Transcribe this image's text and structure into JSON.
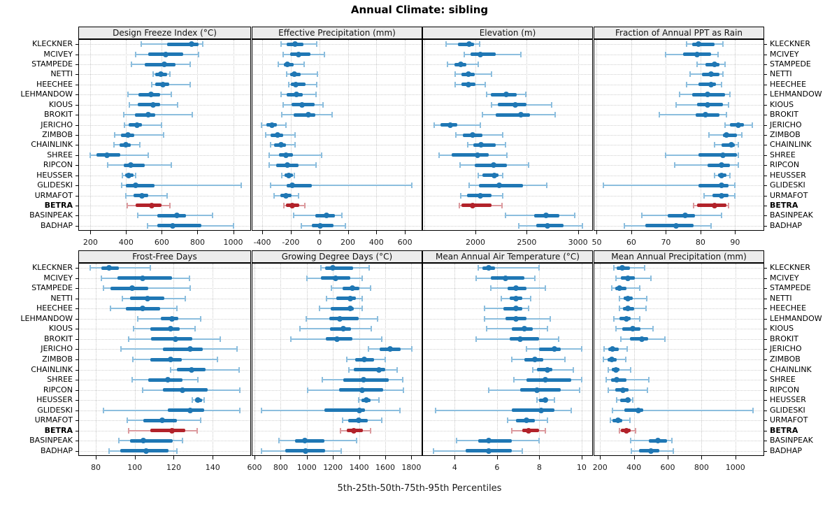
{
  "title": "Annual Climate: sibling",
  "caption": "5th-25th-50th-75th-95th Percentiles",
  "highlight_station": "BETRA",
  "colors": {
    "blue": "#1f77b4",
    "blue_light": "#8cbede",
    "red": "#b2222a",
    "red_light": "#dc9a9e",
    "strip_bg": "#ececec",
    "grid": "#c9c9c9",
    "border": "#000000"
  },
  "stations": [
    "KLECKNER",
    "MCIVEY",
    "STAMPEDE",
    "NETTI",
    "HEECHEE",
    "LEHMANDOW",
    "KIOUS",
    "BROKIT",
    "JERICHO",
    "ZIMBOB",
    "CHAINLINK",
    "SHREE",
    "RIPCON",
    "HEUSSER",
    "GLIDESKI",
    "URMAFOT",
    "BETRA",
    "BASINPEAK",
    "BADHAP"
  ],
  "chart_data": [
    {
      "type": "scatter",
      "panel": "Design Freeze Index (°C)",
      "grid_row": 0,
      "grid_col": 0,
      "xlim": [
        136,
        1096
      ],
      "xticks": [
        200,
        400,
        600,
        800,
        1000
      ],
      "extra_gridlines": [],
      "note": "values are 5th,25th,50th,75th,95th percentiles per station",
      "percentiles": [
        [
          485,
          630,
          765,
          805,
          830
        ],
        [
          455,
          525,
          620,
          720,
          805
        ],
        [
          430,
          505,
          615,
          675,
          760
        ],
        [
          550,
          565,
          595,
          630,
          645
        ],
        [
          545,
          565,
          605,
          640,
          760
        ],
        [
          410,
          470,
          540,
          590,
          655
        ],
        [
          420,
          465,
          550,
          590,
          690
        ],
        [
          385,
          450,
          525,
          565,
          770
        ],
        [
          390,
          415,
          460,
          490,
          600
        ],
        [
          335,
          370,
          410,
          445,
          610
        ],
        [
          330,
          365,
          400,
          425,
          475
        ],
        [
          200,
          235,
          293,
          367,
          525
        ],
        [
          295,
          385,
          425,
          505,
          655
        ],
        [
          380,
          395,
          415,
          440,
          455
        ],
        [
          375,
          400,
          455,
          560,
          1045
        ],
        [
          400,
          440,
          490,
          525,
          630
        ],
        [
          405,
          455,
          545,
          600,
          645
        ],
        [
          465,
          575,
          685,
          735,
          885
        ],
        [
          520,
          575,
          660,
          820,
          1000
        ]
      ]
    },
    {
      "type": "scatter",
      "panel": "Effective Precipitation (mm)",
      "grid_row": 0,
      "grid_col": 1,
      "xlim": [
        -469,
        717
      ],
      "xticks": [
        -400,
        -200,
        0,
        200,
        400,
        600
      ],
      "extra_gridlines": [],
      "percentiles": [
        [
          -270,
          -230,
          -170,
          -110,
          -20
        ],
        [
          -255,
          -205,
          -145,
          -60,
          35
        ],
        [
          -290,
          -250,
          -225,
          -180,
          -105
        ],
        [
          -230,
          -205,
          -175,
          -130,
          -15
        ],
        [
          -215,
          -200,
          -165,
          -95,
          -20
        ],
        [
          -270,
          -230,
          -160,
          -115,
          -25
        ],
        [
          -255,
          -195,
          -120,
          -35,
          25
        ],
        [
          -265,
          -180,
          -75,
          -30,
          90
        ],
        [
          -405,
          -370,
          -330,
          -295,
          -235
        ],
        [
          -375,
          -340,
          -295,
          -255,
          -170
        ],
        [
          -340,
          -315,
          -270,
          -235,
          -170
        ],
        [
          -350,
          -285,
          -235,
          -185,
          15
        ],
        [
          -350,
          -300,
          -225,
          -145,
          -25
        ],
        [
          -265,
          -245,
          -215,
          -185,
          -175
        ],
        [
          -340,
          -230,
          -190,
          -50,
          650
        ],
        [
          -315,
          -275,
          -235,
          -195,
          -145
        ],
        [
          -250,
          -235,
          -190,
          -140,
          -100
        ],
        [
          -180,
          -30,
          50,
          110,
          160
        ],
        [
          -125,
          -50,
          5,
          100,
          185
        ]
      ]
    },
    {
      "type": "scatter",
      "panel": "Elevation (m)",
      "grid_row": 0,
      "grid_col": 2,
      "xlim": [
        1488,
        3139
      ],
      "xticks": [
        2000,
        2500,
        3000
      ],
      "extra_gridlines": [
        1500
      ],
      "percentiles": [
        [
          1715,
          1830,
          1940,
          1985,
          2040
        ],
        [
          1890,
          1950,
          2045,
          2195,
          2440
        ],
        [
          1730,
          1795,
          1855,
          1910,
          2030
        ],
        [
          1800,
          1860,
          1930,
          1995,
          2155
        ],
        [
          1800,
          1865,
          1930,
          2000,
          2095
        ],
        [
          2110,
          2150,
          2300,
          2400,
          2490
        ],
        [
          2155,
          2220,
          2390,
          2500,
          2745
        ],
        [
          2065,
          2200,
          2445,
          2535,
          2775
        ],
        [
          1595,
          1660,
          1755,
          1825,
          2050
        ],
        [
          1810,
          1875,
          1970,
          2065,
          2265
        ],
        [
          1925,
          1980,
          2055,
          2200,
          2295
        ],
        [
          1645,
          1770,
          2020,
          2130,
          2305
        ],
        [
          1850,
          1990,
          2175,
          2305,
          2520
        ],
        [
          2025,
          2065,
          2185,
          2225,
          2265
        ],
        [
          1935,
          2035,
          2230,
          2465,
          2695
        ],
        [
          1855,
          1920,
          2050,
          2155,
          2265
        ],
        [
          1840,
          1865,
          1975,
          2155,
          2260
        ],
        [
          2295,
          2575,
          2690,
          2815,
          2970
        ],
        [
          2420,
          2595,
          2700,
          2860,
          3045
        ]
      ]
    },
    {
      "type": "scatter",
      "panel": "Fraction of Annual PPT as Rain",
      "grid_row": 0,
      "grid_col": 3,
      "xlim": [
        49.3,
        98.2
      ],
      "xticks": [
        50,
        60,
        70,
        80,
        90
      ],
      "extra_gridlines": [],
      "percentiles": [
        [
          76,
          77.5,
          79.5,
          84,
          86.5
        ],
        [
          70,
          75,
          79,
          83,
          85
        ],
        [
          79,
          81.5,
          84,
          85.5,
          87
        ],
        [
          77,
          80.5,
          83,
          85.5,
          86.5
        ],
        [
          76,
          79.5,
          83,
          84.5,
          86
        ],
        [
          74,
          77.5,
          82,
          87,
          88.5
        ],
        [
          73,
          79,
          82,
          86.5,
          88
        ],
        [
          68,
          78.5,
          81.5,
          85.5,
          87.5
        ],
        [
          87,
          88.5,
          91,
          92.5,
          95
        ],
        [
          82.5,
          86.5,
          87.5,
          90.5,
          92
        ],
        [
          84,
          86,
          89,
          90,
          91
        ],
        [
          70,
          79.5,
          86.5,
          90.5,
          91
        ],
        [
          72.5,
          82,
          86,
          88.5,
          91
        ],
        [
          84,
          85,
          86,
          87.5,
          88.5
        ],
        [
          52,
          79.5,
          86,
          88,
          90
        ],
        [
          81,
          83.5,
          86,
          88,
          90
        ],
        [
          78,
          79,
          84,
          87.5,
          88
        ],
        [
          63,
          70.5,
          75.5,
          78.5,
          86
        ],
        [
          58,
          64,
          73,
          78,
          83
        ]
      ]
    },
    {
      "type": "scatter",
      "panel": "Frost-Free Days",
      "grid_row": 1,
      "grid_col": 0,
      "xlim": [
        71.4,
        159.3
      ],
      "xticks": [
        80,
        100,
        120,
        140
      ],
      "extra_gridlines": [],
      "percentiles": [
        [
          77,
          83,
          87,
          92,
          108
        ],
        [
          83,
          91,
          104,
          119,
          128
        ],
        [
          84,
          87.5,
          98.5,
          107,
          128.5
        ],
        [
          93.5,
          97.5,
          106.5,
          115,
          126
        ],
        [
          87.5,
          95.5,
          104,
          113,
          121.5
        ],
        [
          101.5,
          113.5,
          119,
          122.5,
          134
        ],
        [
          99.5,
          108,
          118.5,
          123,
          131
        ],
        [
          97,
          108.5,
          121,
          129.5,
          144
        ],
        [
          93,
          114.5,
          128.5,
          135,
          152.5
        ],
        [
          99,
          108,
          118.5,
          124,
          142.5
        ],
        [
          118.5,
          121.5,
          129,
          136.5,
          153.5
        ],
        [
          98.5,
          107,
          117,
          124.5,
          132.5
        ],
        [
          104,
          114.5,
          124.5,
          137.5,
          154
        ],
        [
          129.5,
          131,
          132.5,
          134.5,
          135.5
        ],
        [
          84,
          117,
          128.5,
          135.5,
          154
        ],
        [
          96,
          104.5,
          114,
          121.5,
          134
        ],
        [
          97,
          108,
          119,
          126,
          132
        ],
        [
          92,
          97.5,
          104.5,
          119.5,
          124.5
        ],
        [
          87,
          92.5,
          106,
          117.5,
          121.5
        ]
      ]
    },
    {
      "type": "scatter",
      "panel": "Growing Degree Days (°C)",
      "grid_row": 1,
      "grid_col": 1,
      "xlim": [
        584,
        1878
      ],
      "xticks": [
        600,
        800,
        1000,
        1200,
        1400,
        1600,
        1800
      ],
      "extra_gridlines": [],
      "percentiles": [
        [
          1110,
          1140,
          1200,
          1355,
          1475
        ],
        [
          1000,
          1110,
          1220,
          1335,
          1425
        ],
        [
          1190,
          1275,
          1350,
          1400,
          1485
        ],
        [
          1150,
          1225,
          1335,
          1375,
          1425
        ],
        [
          1095,
          1185,
          1330,
          1360,
          1425
        ],
        [
          995,
          1170,
          1250,
          1395,
          1540
        ],
        [
          945,
          1175,
          1280,
          1340,
          1495
        ],
        [
          880,
          1145,
          1230,
          1350,
          1575
        ],
        [
          1470,
          1555,
          1640,
          1715,
          1805
        ],
        [
          1305,
          1370,
          1440,
          1515,
          1600
        ],
        [
          1320,
          1360,
          1550,
          1600,
          1690
        ],
        [
          1120,
          1280,
          1435,
          1625,
          1735
        ],
        [
          1005,
          1245,
          1425,
          1585,
          1740
        ],
        [
          1395,
          1420,
          1455,
          1490,
          1550
        ],
        [
          655,
          1135,
          1400,
          1445,
          1710
        ],
        [
          1275,
          1315,
          1395,
          1465,
          1575
        ],
        [
          1260,
          1305,
          1360,
          1430,
          1485
        ],
        [
          785,
          910,
          985,
          1135,
          1380
        ],
        [
          655,
          835,
          990,
          1140,
          1265
        ]
      ]
    },
    {
      "type": "scatter",
      "panel": "Mean Annual Air Temperature (°C)",
      "grid_row": 1,
      "grid_col": 2,
      "xlim": [
        2.5,
        10.5
      ],
      "xticks": [
        4,
        6,
        8,
        10
      ],
      "extra_gridlines": [],
      "percentiles": [
        [
          5.1,
          5.3,
          5.6,
          5.9,
          8.0
        ],
        [
          5.0,
          5.7,
          6.4,
          7.3,
          7.8
        ],
        [
          5.7,
          6.5,
          6.9,
          7.4,
          8.3
        ],
        [
          6.2,
          6.6,
          6.9,
          7.2,
          7.6
        ],
        [
          5.4,
          6.3,
          6.9,
          7.2,
          7.5
        ],
        [
          5.4,
          6.4,
          6.9,
          7.4,
          8.5
        ],
        [
          5.5,
          6.7,
          7.3,
          7.7,
          8.4
        ],
        [
          5.0,
          6.6,
          7.1,
          8.0,
          8.9
        ],
        [
          7.4,
          8.0,
          8.7,
          9.0,
          10.0
        ],
        [
          6.7,
          7.3,
          7.8,
          8.2,
          9.2
        ],
        [
          7.7,
          7.9,
          8.4,
          8.6,
          9.6
        ],
        [
          6.8,
          7.4,
          8.3,
          9.5,
          10.0
        ],
        [
          5.6,
          7.1,
          7.9,
          9.0,
          9.9
        ],
        [
          7.9,
          8.0,
          8.3,
          8.4,
          8.7
        ],
        [
          3.1,
          6.7,
          8.1,
          8.7,
          9.5
        ],
        [
          6.5,
          6.9,
          7.4,
          7.8,
          8.4
        ],
        [
          6.7,
          7.2,
          7.5,
          8.0,
          8.3
        ],
        [
          4.1,
          5.1,
          5.6,
          6.7,
          8.0
        ],
        [
          3.0,
          4.5,
          5.6,
          6.7,
          7.2
        ]
      ]
    },
    {
      "type": "scatter",
      "panel": "Mean Annual Precipitation (mm)",
      "grid_row": 1,
      "grid_col": 3,
      "xlim": [
        166,
        1166
      ],
      "xticks": [
        200,
        400,
        600,
        800,
        1000
      ],
      "extra_gridlines": [],
      "percentiles": [
        [
          280,
          300,
          330,
          375,
          465
        ],
        [
          295,
          325,
          365,
          405,
          500
        ],
        [
          270,
          290,
          315,
          355,
          435
        ],
        [
          315,
          340,
          365,
          395,
          475
        ],
        [
          315,
          335,
          365,
          400,
          470
        ],
        [
          280,
          315,
          355,
          380,
          435
        ],
        [
          295,
          330,
          395,
          440,
          515
        ],
        [
          325,
          375,
          445,
          485,
          585
        ],
        [
          225,
          250,
          275,
          310,
          360
        ],
        [
          220,
          245,
          270,
          300,
          350
        ],
        [
          250,
          270,
          295,
          315,
          380
        ],
        [
          235,
          265,
          300,
          355,
          490
        ],
        [
          250,
          290,
          335,
          370,
          480
        ],
        [
          300,
          320,
          365,
          380,
          395
        ],
        [
          275,
          345,
          425,
          455,
          1105
        ],
        [
          260,
          275,
          305,
          330,
          375
        ],
        [
          315,
          325,
          355,
          380,
          410
        ],
        [
          380,
          490,
          540,
          595,
          625
        ],
        [
          385,
          430,
          500,
          550,
          635
        ]
      ]
    }
  ]
}
